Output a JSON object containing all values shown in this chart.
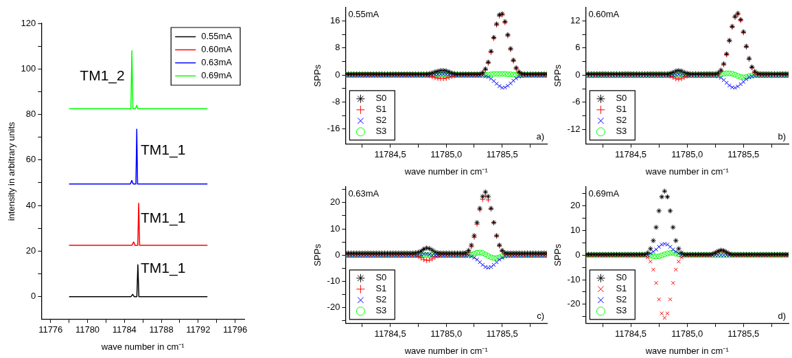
{
  "chart_data": [
    {
      "type": "line",
      "xlabel": "wave number in cm⁻¹",
      "ylabel": "intensity in arbitrary units",
      "xlim": [
        11775,
        11797
      ],
      "xticks": [
        11776,
        {
          "value": 11778,
          "label": null
        },
        11780,
        {
          "value": 11782,
          "label": null
        },
        11784,
        {
          "value": 11786,
          "label": null
        },
        11788,
        {
          "value": 11790,
          "label": null
        },
        11792,
        {
          "value": 11794,
          "label": null
        },
        11796
      ],
      "ylim": [
        -10,
        120
      ],
      "yticks": [
        0,
        {
          "value": 10,
          "label": null
        },
        20,
        {
          "value": 30,
          "label": null
        },
        40,
        {
          "value": 50,
          "label": null
        },
        60,
        {
          "value": 70,
          "label": null
        },
        80,
        {
          "value": 90,
          "label": null
        },
        100,
        {
          "value": 110,
          "label": null
        },
        120
      ],
      "grid": false,
      "legend": "top right",
      "series": [
        {
          "name": "0.55mA",
          "color": "#000000",
          "x": [
            11778,
            11784.7,
            11784.9,
            11785.05,
            11785.35,
            11785.46,
            11785.57,
            11793
          ],
          "values": [
            0,
            0,
            1,
            0,
            0,
            14,
            0,
            0
          ]
        },
        {
          "name": "0.60mA",
          "color": "#ff0000",
          "x": [
            11778,
            11784.8,
            11785.0,
            11785.15,
            11785.45,
            11785.55,
            11785.65,
            11793
          ],
          "values": [
            22.5,
            22.5,
            24,
            22.5,
            22.5,
            41,
            22.5,
            22.5
          ]
        },
        {
          "name": "0.63mA",
          "color": "#0000ff",
          "x": [
            11778,
            11784.65,
            11784.8,
            11784.95,
            11785.25,
            11785.34,
            11785.43,
            11793
          ],
          "values": [
            49.5,
            49.5,
            51,
            49.5,
            49.5,
            73.5,
            49.5,
            49.5
          ]
        },
        {
          "name": "0.69mA",
          "color": "#00ff00",
          "x": [
            11778,
            11784.7,
            11784.81,
            11784.92,
            11785.2,
            11785.34,
            11785.45,
            11793
          ],
          "values": [
            82.5,
            82.5,
            108,
            82.5,
            82.5,
            84,
            82.5,
            82.5
          ]
        }
      ],
      "annotations": [
        "TM1_2",
        "TM1_1",
        "TM1_1",
        "TM1_1"
      ]
    },
    {
      "type": "scatter",
      "xlabel": "wave number in cm⁻¹",
      "ylabel": "SPPs",
      "xlim": [
        11784.1,
        11785.9
      ],
      "xticks": [
        {
          "value": 11784.25,
          "label": null
        },
        {
          "value": 11784.5,
          "label": "11784,5"
        },
        {
          "value": 11784.75,
          "label": null
        },
        {
          "value": 11785,
          "label": "11785,0"
        },
        {
          "value": 11785.25,
          "label": null
        },
        {
          "value": 11785.5,
          "label": "11785,5"
        },
        {
          "value": 11785.75,
          "label": null
        }
      ],
      "ylim": [
        -20.5,
        20
      ],
      "yticks": [
        -16,
        {
          "value": -12,
          "label": null
        },
        -8,
        {
          "value": -4,
          "label": null
        },
        0,
        {
          "value": 4,
          "label": null
        },
        8,
        {
          "value": 12,
          "label": null
        },
        16
      ],
      "grid": false,
      "legend": "bottom left",
      "annotations": [
        "0.55mA",
        "a)"
      ],
      "x": [
        11784.1,
        11784.125,
        11784.15,
        11784.175,
        11784.2,
        11784.225,
        11784.25,
        11784.275,
        11784.3,
        11784.325,
        11784.35,
        11784.375,
        11784.4,
        11784.425,
        11784.45,
        11784.475,
        11784.5,
        11784.525,
        11784.55,
        11784.575,
        11784.6,
        11784.625,
        11784.65,
        11784.675,
        11784.7,
        11784.725,
        11784.75,
        11784.775,
        11784.8,
        11784.825,
        11784.85,
        11784.875,
        11784.9,
        11784.925,
        11784.95,
        11784.975,
        11785,
        11785.025,
        11785.05,
        11785.075,
        11785.1,
        11785.125,
        11785.15,
        11785.175,
        11785.2,
        11785.225,
        11785.25,
        11785.275,
        11785.3,
        11785.325,
        11785.35,
        11785.375,
        11785.4,
        11785.425,
        11785.45,
        11785.475,
        11785.5,
        11785.525,
        11785.55,
        11785.575,
        11785.6,
        11785.625,
        11785.65,
        11785.675,
        11785.7,
        11785.725,
        11785.75,
        11785.775,
        11785.8,
        11785.825,
        11785.85,
        11785.875,
        11785.9
      ],
      "series": [
        {
          "name": "S0",
          "color": "#000000",
          "values": [
            0.3,
            0.3,
            0.3,
            0.3,
            0.3,
            0.3,
            0.3,
            0.3,
            0.3,
            0.3,
            0.3,
            0.3,
            0.3,
            0.3,
            0.3,
            0.3,
            0.3,
            0.3,
            0.3,
            0.3,
            0.3,
            0.3,
            0.3,
            0.3,
            0.3,
            0.3,
            0.3,
            0.3,
            0.3,
            0.3,
            0.4,
            0.6,
            0.9,
            1.1,
            1.3,
            1.3,
            1.2,
            0.9,
            0.6,
            0.4,
            0.3,
            0.3,
            0.3,
            0.3,
            0.3,
            0.3,
            0.3,
            0.3,
            0.3,
            0.7,
            1.8,
            3.8,
            7.0,
            11.1,
            15.1,
            17.8,
            18.1,
            15.8,
            11.9,
            7.8,
            4.4,
            2.1,
            0.9,
            0.4,
            0.3,
            0.3,
            0.3,
            0.3,
            0.3,
            0.3,
            0.3,
            0.3,
            0.3
          ]
        },
        {
          "name": "S1",
          "color": "#ff0000",
          "marker": "plus",
          "values": [
            0,
            0,
            0,
            0,
            0,
            0,
            0,
            0,
            0,
            0,
            0,
            0,
            0,
            0,
            0,
            0,
            0,
            0,
            0,
            0,
            0,
            0,
            0,
            0,
            0,
            0,
            0,
            0,
            0,
            0,
            -0.2,
            -0.5,
            -0.8,
            -1.0,
            -1.1,
            -1.1,
            -1.0,
            -0.7,
            -0.4,
            -0.2,
            0,
            0,
            0,
            0,
            0,
            0,
            0,
            0,
            0,
            0.4,
            1.5,
            3.5,
            6.7,
            10.8,
            14.8,
            17.5,
            17.8,
            15.5,
            11.6,
            7.5,
            4.1,
            1.8,
            0.6,
            0,
            0,
            0,
            0,
            0,
            0,
            0,
            0,
            0,
            0
          ]
        },
        {
          "name": "S2",
          "color": "#0000ff",
          "marker": "cross",
          "values": [
            -0.2,
            -0.2,
            -0.2,
            -0.2,
            -0.2,
            -0.2,
            -0.2,
            -0.2,
            -0.2,
            -0.2,
            -0.2,
            -0.2,
            -0.2,
            -0.2,
            -0.2,
            -0.2,
            -0.2,
            -0.2,
            -0.2,
            -0.2,
            -0.2,
            -0.2,
            -0.2,
            -0.2,
            -0.2,
            -0.2,
            -0.2,
            -0.2,
            -0.2,
            -0.2,
            -0.2,
            -0.1,
            0.1,
            0.2,
            0.3,
            0.3,
            0.2,
            0.1,
            -0.1,
            -0.2,
            -0.2,
            -0.2,
            -0.2,
            -0.2,
            -0.2,
            -0.2,
            -0.2,
            -0.2,
            -0.2,
            -0.2,
            -0.4,
            -0.6,
            -1.1,
            -1.8,
            -2.6,
            -3.3,
            -3.8,
            -3.7,
            -3.2,
            -2.5,
            -1.7,
            -1.0,
            -0.5,
            -0.3,
            -0.2,
            -0.2,
            -0.2,
            -0.2,
            -0.2,
            -0.2,
            -0.2,
            -0.2,
            -0.2
          ]
        },
        {
          "name": "S3",
          "color": "#00ff00",
          "marker": "circle",
          "values": [
            0,
            0,
            0,
            0,
            0,
            0,
            0,
            0,
            0,
            0,
            0,
            0,
            0,
            0,
            0,
            0,
            0,
            0,
            0,
            0,
            0,
            0,
            0,
            0,
            0,
            0,
            0,
            0,
            0,
            0,
            0,
            0,
            0,
            0,
            0,
            0,
            0,
            0,
            0,
            0,
            0,
            0,
            0,
            0,
            0,
            0,
            0,
            0,
            0,
            0,
            0,
            0.1,
            0.2,
            0.3,
            0.3,
            0.3,
            0.3,
            0.3,
            0.2,
            0.2,
            0.1,
            0,
            0,
            0,
            0,
            0,
            0,
            0,
            0,
            0,
            0,
            0,
            0
          ]
        }
      ]
    },
    {
      "type": "scatter",
      "xlabel": "wave number in cm⁻¹",
      "ylabel": "SPPs",
      "xlim": [
        11784.1,
        11785.9
      ],
      "xticks": [
        {
          "value": 11784.25,
          "label": null
        },
        {
          "value": 11784.5,
          "label": "11784,5"
        },
        {
          "value": 11784.75,
          "label": null
        },
        {
          "value": 11785,
          "label": "11785,0"
        },
        {
          "value": 11785.25,
          "label": null
        },
        {
          "value": 11785.5,
          "label": "11785,5"
        },
        {
          "value": 11785.75,
          "label": null
        }
      ],
      "ylim": [
        -15.3,
        15
      ],
      "yticks": [
        -12,
        {
          "value": -9,
          "label": null
        },
        -6,
        {
          "value": -3,
          "label": null
        },
        0,
        {
          "value": 3,
          "label": null
        },
        6,
        {
          "value": 9,
          "label": null
        },
        12
      ],
      "grid": false,
      "legend": "bottom left",
      "annotations": [
        "0.60mA",
        "b)"
      ],
      "x": [
        11784.1,
        11784.125,
        11784.15,
        11784.175,
        11784.2,
        11784.225,
        11784.25,
        11784.275,
        11784.3,
        11784.325,
        11784.35,
        11784.375,
        11784.4,
        11784.425,
        11784.45,
        11784.475,
        11784.5,
        11784.525,
        11784.55,
        11784.575,
        11784.6,
        11784.625,
        11784.65,
        11784.675,
        11784.7,
        11784.725,
        11784.75,
        11784.775,
        11784.8,
        11784.825,
        11784.85,
        11784.875,
        11784.9,
        11784.925,
        11784.95,
        11784.975,
        11785,
        11785.025,
        11785.05,
        11785.075,
        11785.1,
        11785.125,
        11785.15,
        11785.175,
        11785.2,
        11785.225,
        11785.25,
        11785.275,
        11785.3,
        11785.325,
        11785.35,
        11785.375,
        11785.4,
        11785.425,
        11785.45,
        11785.475,
        11785.5,
        11785.525,
        11785.55,
        11785.575,
        11785.6,
        11785.625,
        11785.65,
        11785.675,
        11785.7,
        11785.725,
        11785.75,
        11785.775,
        11785.8,
        11785.825,
        11785.85,
        11785.875,
        11785.9
      ],
      "series": [
        {
          "name": "S0",
          "color": "#000000",
          "values": [
            0.3,
            0.3,
            0.3,
            0.3,
            0.3,
            0.3,
            0.3,
            0.3,
            0.3,
            0.3,
            0.3,
            0.3,
            0.3,
            0.3,
            0.3,
            0.3,
            0.3,
            0.3,
            0.3,
            0.3,
            0.3,
            0.3,
            0.3,
            0.3,
            0.3,
            0.3,
            0.3,
            0.3,
            0.3,
            0.3,
            0.4,
            0.6,
            0.9,
            1.0,
            0.9,
            0.6,
            0.4,
            0.3,
            0.3,
            0.3,
            0.3,
            0.3,
            0.3,
            0.3,
            0.3,
            0.3,
            0.3,
            0.5,
            1.1,
            2.5,
            4.7,
            7.7,
            10.8,
            13.0,
            13.7,
            12.3,
            9.6,
            6.4,
            3.7,
            1.8,
            0.8,
            0.4,
            0.3,
            0.3,
            0.3,
            0.3,
            0.3,
            0.3,
            0.3,
            0.3,
            0.3,
            0.3,
            0.3
          ]
        },
        {
          "name": "S1",
          "color": "#ff0000",
          "marker": "plus",
          "values": [
            0,
            0,
            0,
            0,
            0,
            0,
            0,
            0,
            0,
            0,
            0,
            0,
            0,
            0,
            0,
            0,
            0,
            0,
            0,
            0,
            0,
            0,
            0,
            0,
            0,
            0,
            0,
            0,
            0,
            0,
            -0.2,
            -0.5,
            -0.8,
            -0.9,
            -0.8,
            -0.5,
            -0.2,
            0,
            0,
            0,
            0,
            0,
            0,
            0,
            0,
            0,
            0,
            0.2,
            0.9,
            2.3,
            4.5,
            7.5,
            10.6,
            12.8,
            13.4,
            12.1,
            9.4,
            6.2,
            3.5,
            1.6,
            0.6,
            0.1,
            0,
            0,
            0,
            0,
            0,
            0,
            0,
            0,
            0,
            0,
            0
          ]
        },
        {
          "name": "S2",
          "color": "#0000ff",
          "marker": "cross",
          "values": [
            -0.2,
            -0.2,
            -0.2,
            -0.2,
            -0.2,
            -0.2,
            -0.2,
            -0.2,
            -0.2,
            -0.2,
            -0.2,
            -0.2,
            -0.2,
            -0.2,
            -0.2,
            -0.2,
            -0.2,
            -0.2,
            -0.2,
            -0.2,
            -0.2,
            -0.2,
            -0.2,
            -0.2,
            -0.2,
            -0.2,
            -0.2,
            -0.2,
            -0.2,
            -0.2,
            -0.2,
            -0.1,
            0.1,
            0.2,
            0.1,
            -0.1,
            -0.2,
            -0.2,
            -0.2,
            -0.2,
            -0.2,
            -0.2,
            -0.2,
            -0.2,
            -0.2,
            -0.2,
            -0.2,
            -0.3,
            -0.6,
            -1.1,
            -1.7,
            -2.3,
            -2.7,
            -2.8,
            -2.5,
            -2.0,
            -1.5,
            -0.9,
            -0.5,
            -0.3,
            -0.2,
            -0.2,
            -0.2,
            -0.2,
            -0.2,
            -0.2,
            -0.2,
            -0.2,
            -0.2,
            -0.2,
            -0.2,
            -0.2,
            -0.2
          ]
        },
        {
          "name": "S3",
          "color": "#00ff00",
          "marker": "circle",
          "values": [
            0,
            0,
            0,
            0,
            0,
            0,
            0,
            0,
            0,
            0,
            0,
            0,
            0,
            0,
            0,
            0,
            0,
            0,
            0,
            0,
            0,
            0,
            0,
            0,
            0,
            0,
            0,
            0,
            0,
            0,
            0,
            0,
            0,
            0,
            0,
            0,
            0,
            0,
            0,
            0,
            0,
            0,
            0,
            0,
            0,
            0,
            0,
            0,
            0.2,
            0.3,
            0.4,
            0.4,
            0.3,
            0.1,
            -0.2,
            -0.4,
            -0.5,
            -0.4,
            -0.2,
            -0.1,
            0,
            0,
            0,
            0,
            0,
            0,
            0,
            0,
            0,
            0,
            0,
            0,
            0
          ]
        }
      ]
    },
    {
      "type": "scatter",
      "xlabel": "wave number in cm⁻¹",
      "ylabel": "SPPs",
      "xlim": [
        11784.1,
        11785.9
      ],
      "xticks": [
        {
          "value": 11784.25,
          "label": null
        },
        {
          "value": 11784.5,
          "label": "11784,5"
        },
        {
          "value": 11784.75,
          "label": null
        },
        {
          "value": 11785,
          "label": "11785,0"
        },
        {
          "value": 11785.25,
          "label": null
        },
        {
          "value": 11785.5,
          "label": "11785,5"
        },
        {
          "value": 11785.75,
          "label": null
        }
      ],
      "ylim": [
        -26,
        26
      ],
      "yticks": [
        {
          "value": -25,
          "label": null
        },
        -20,
        {
          "value": -15,
          "label": null
        },
        -10,
        {
          "value": -5,
          "label": null
        },
        0,
        {
          "value": 5,
          "label": null
        },
        10,
        {
          "value": 15,
          "label": null
        },
        20,
        {
          "value": 25,
          "label": null
        }
      ],
      "grid": false,
      "legend": "bottom left",
      "annotations": [
        "0.63mA",
        "c)"
      ],
      "x": [
        11784.1,
        11784.125,
        11784.15,
        11784.175,
        11784.2,
        11784.225,
        11784.25,
        11784.275,
        11784.3,
        11784.325,
        11784.35,
        11784.375,
        11784.4,
        11784.425,
        11784.45,
        11784.475,
        11784.5,
        11784.525,
        11784.55,
        11784.575,
        11784.6,
        11784.625,
        11784.65,
        11784.675,
        11784.7,
        11784.725,
        11784.75,
        11784.775,
        11784.8,
        11784.825,
        11784.85,
        11784.875,
        11784.9,
        11784.925,
        11784.95,
        11784.975,
        11785,
        11785.025,
        11785.05,
        11785.075,
        11785.1,
        11785.125,
        11785.15,
        11785.175,
        11785.2,
        11785.225,
        11785.25,
        11785.275,
        11785.3,
        11785.325,
        11785.35,
        11785.375,
        11785.4,
        11785.425,
        11785.45,
        11785.475,
        11785.5,
        11785.525,
        11785.55,
        11785.575,
        11785.6,
        11785.625,
        11785.65,
        11785.675,
        11785.7,
        11785.725,
        11785.75,
        11785.775,
        11785.8,
        11785.825,
        11785.85,
        11785.875,
        11785.9
      ],
      "series": [
        {
          "name": "S0",
          "color": "#000000",
          "values": [
            0.8,
            0.8,
            0.8,
            0.8,
            0.8,
            0.8,
            0.8,
            0.8,
            0.8,
            0.8,
            0.8,
            0.8,
            0.8,
            0.8,
            0.8,
            0.8,
            0.8,
            0.8,
            0.8,
            0.8,
            0.8,
            0.8,
            0.8,
            0.8,
            0.8,
            0.9,
            1.1,
            1.5,
            2.3,
            2.7,
            2.5,
            1.9,
            1.2,
            0.9,
            0.8,
            0.8,
            0.8,
            0.8,
            0.8,
            0.8,
            0.8,
            0.8,
            0.8,
            0.9,
            1.8,
            3.8,
            7.4,
            12.4,
            17.8,
            22.3,
            24.0,
            22.3,
            17.8,
            12.4,
            7.4,
            3.8,
            1.8,
            0.9,
            0.8,
            0.8,
            0.8,
            0.8,
            0.8,
            0.8,
            0.8,
            0.8,
            0.8,
            0.8,
            0.8,
            0.8,
            0.8,
            0.8,
            0.8
          ]
        },
        {
          "name": "S1",
          "color": "#ff0000",
          "marker": "plus",
          "values": [
            0,
            0,
            0,
            0,
            0,
            0,
            0,
            0,
            0,
            0,
            0,
            0,
            0,
            0,
            0,
            0,
            0,
            0,
            0,
            0,
            0,
            0,
            0,
            0,
            0,
            0,
            -0.4,
            -1.0,
            -1.7,
            -2.0,
            -1.9,
            -1.4,
            -0.8,
            -0.3,
            0,
            0,
            0,
            0,
            0,
            0,
            0,
            0,
            0,
            0,
            1.2,
            3.2,
            6.8,
            11.8,
            17.2,
            21.2,
            22.5,
            21.0,
            17.5,
            12.3,
            7.2,
            3.5,
            1.4,
            0.4,
            0,
            0,
            0,
            0,
            0,
            0,
            0,
            0,
            0,
            0,
            0,
            0,
            0,
            0,
            0
          ]
        },
        {
          "name": "S2",
          "color": "#0000ff",
          "marker": "cross",
          "values": [
            -0.2,
            -0.2,
            -0.2,
            -0.2,
            -0.2,
            -0.2,
            -0.2,
            -0.2,
            -0.2,
            -0.2,
            -0.2,
            -0.2,
            -0.2,
            -0.2,
            -0.2,
            -0.2,
            -0.2,
            -0.2,
            -0.2,
            -0.2,
            -0.2,
            -0.2,
            -0.2,
            -0.2,
            -0.2,
            -0.2,
            -0.2,
            0.2,
            0.5,
            0.5,
            0.3,
            -0.1,
            -0.2,
            -0.2,
            -0.2,
            -0.2,
            -0.2,
            -0.2,
            -0.2,
            -0.2,
            -0.2,
            -0.2,
            -0.2,
            -0.2,
            -0.2,
            -0.5,
            -1.0,
            -1.7,
            -2.7,
            -3.7,
            -4.5,
            -4.8,
            -4.5,
            -3.7,
            -2.7,
            -1.7,
            -1.0,
            -0.5,
            -0.2,
            -0.2,
            -0.2,
            -0.2,
            -0.2,
            -0.2,
            -0.2,
            -0.2,
            -0.2,
            -0.2,
            -0.2,
            -0.2,
            -0.2,
            -0.2,
            -0.2
          ]
        },
        {
          "name": "S3",
          "color": "#00ff00",
          "marker": "circle",
          "values": [
            0,
            0,
            0,
            0,
            0,
            0,
            0,
            0,
            0,
            0,
            0,
            0,
            0,
            0,
            0,
            0,
            0,
            0,
            0,
            0,
            0,
            0,
            0,
            0,
            0,
            0,
            0,
            0,
            0,
            0,
            0,
            0,
            0,
            0,
            0,
            0,
            0,
            0,
            0,
            0,
            0,
            0,
            0,
            0,
            0,
            0.2,
            0.6,
            0.9,
            1.0,
            0.8,
            0.3,
            -0.3,
            -0.8,
            -1.1,
            -1.1,
            -0.8,
            -0.4,
            -0.1,
            0,
            0,
            0,
            0,
            0,
            0,
            0,
            0,
            0,
            0,
            0,
            0,
            0,
            0,
            0
          ]
        }
      ]
    },
    {
      "type": "scatter",
      "xlabel": "wave number in cm⁻¹",
      "ylabel": "SPPs",
      "xlim": [
        11784.1,
        11785.9
      ],
      "xticks": [
        {
          "value": 11784.25,
          "label": null
        },
        {
          "value": 11784.5,
          "label": "11784,5"
        },
        {
          "value": 11784.75,
          "label": null
        },
        {
          "value": 11785,
          "label": "11785,0"
        },
        {
          "value": 11785.25,
          "label": null
        },
        {
          "value": 11785.5,
          "label": "11785,5"
        },
        {
          "value": 11785.75,
          "label": null
        }
      ],
      "ylim": [
        -27.8,
        27.8
      ],
      "yticks": [
        {
          "value": -25,
          "label": null
        },
        -20,
        {
          "value": -15,
          "label": null
        },
        -10,
        {
          "value": -5,
          "label": null
        },
        0,
        {
          "value": 5,
          "label": null
        },
        10,
        {
          "value": 15,
          "label": null
        },
        20,
        {
          "value": 25,
          "label": null
        }
      ],
      "grid": false,
      "legend": "bottom left",
      "annotations": [
        "0.69mA",
        "d)"
      ],
      "x": [
        11784.1,
        11784.125,
        11784.15,
        11784.175,
        11784.2,
        11784.225,
        11784.25,
        11784.275,
        11784.3,
        11784.325,
        11784.35,
        11784.375,
        11784.4,
        11784.425,
        11784.45,
        11784.475,
        11784.5,
        11784.525,
        11784.55,
        11784.575,
        11784.6,
        11784.625,
        11784.65,
        11784.675,
        11784.7,
        11784.725,
        11784.75,
        11784.775,
        11784.8,
        11784.825,
        11784.85,
        11784.875,
        11784.9,
        11784.925,
        11784.95,
        11784.975,
        11785,
        11785.025,
        11785.05,
        11785.075,
        11785.1,
        11785.125,
        11785.15,
        11785.175,
        11785.2,
        11785.225,
        11785.25,
        11785.275,
        11785.3,
        11785.325,
        11785.35,
        11785.375,
        11785.4,
        11785.425,
        11785.45,
        11785.475,
        11785.5,
        11785.525,
        11785.55,
        11785.575,
        11785.6,
        11785.625,
        11785.65,
        11785.675,
        11785.7,
        11785.725,
        11785.75,
        11785.775,
        11785.8,
        11785.825,
        11785.85,
        11785.875,
        11785.9
      ],
      "series": [
        {
          "name": "S0",
          "color": "#000000",
          "values": [
            0.3,
            0.3,
            0.3,
            0.3,
            0.3,
            0.3,
            0.3,
            0.3,
            0.3,
            0.3,
            0.3,
            0.3,
            0.3,
            0.3,
            0.3,
            0.3,
            0.3,
            0.3,
            0.3,
            0.3,
            0.3,
            0.3,
            0.9,
            2.6,
            5.9,
            11.3,
            18.0,
            23.7,
            26.0,
            23.7,
            18.0,
            11.3,
            5.9,
            2.6,
            0.9,
            0.3,
            0.3,
            0.3,
            0.3,
            0.3,
            0.3,
            0.3,
            0.3,
            0.3,
            0.3,
            0.5,
            1.0,
            1.6,
            2.0,
            1.8,
            1.2,
            0.6,
            0.3,
            0.3,
            0.3,
            0.3,
            0.3,
            0.3,
            0.3,
            0.3,
            0.3,
            0.3,
            0.3,
            0.3,
            0.3,
            0.3,
            0.3,
            0.3,
            0.3,
            0.3,
            0.3,
            0.3,
            0.3
          ]
        },
        {
          "name": "S1",
          "color": "#ff0000",
          "marker": "cross",
          "values": [
            0,
            0,
            0,
            0,
            0,
            0,
            0,
            0,
            0,
            0,
            0,
            0,
            0,
            0,
            0,
            0,
            0,
            0,
            0,
            0,
            0,
            0,
            -0.9,
            -2.6,
            -5.9,
            -11.3,
            -18.0,
            -23.7,
            -25.5,
            -23.7,
            -18.0,
            -11.3,
            -5.9,
            -2.6,
            -0.9,
            0,
            0,
            0,
            0,
            0,
            0,
            0,
            0,
            0,
            0,
            0,
            0.9,
            1.5,
            1.8,
            1.6,
            1.0,
            0.4,
            0,
            0,
            0,
            0,
            0,
            0,
            0,
            0,
            0,
            0,
            0,
            0,
            0,
            0,
            0,
            0,
            0,
            0,
            0,
            0,
            0
          ]
        },
        {
          "name": "S2",
          "color": "#0000ff",
          "marker": "cross",
          "values": [
            0,
            0,
            0,
            0,
            0,
            0,
            0,
            0,
            0,
            0,
            0,
            0,
            0,
            0,
            0,
            0,
            0,
            0,
            0,
            0,
            0,
            0,
            0,
            0.7,
            1.4,
            2.3,
            3.4,
            4.3,
            4.6,
            4.3,
            3.4,
            2.3,
            1.4,
            0.7,
            0,
            0,
            0,
            0,
            0,
            0,
            0,
            0,
            0,
            0,
            0,
            0,
            0,
            0,
            0,
            0,
            0,
            0,
            0,
            0,
            0,
            0,
            0,
            0,
            0,
            0,
            0,
            0,
            0,
            0,
            0,
            0,
            0,
            0,
            0,
            0,
            0,
            0,
            0
          ]
        },
        {
          "name": "S3",
          "color": "#00ff00",
          "marker": "circle",
          "values": [
            0,
            0,
            0,
            0,
            0,
            0,
            0,
            0,
            0,
            0,
            0,
            0,
            0,
            0,
            0,
            0,
            0,
            0,
            0,
            0,
            0,
            0,
            0,
            -0.2,
            -0.5,
            -0.6,
            -0.5,
            -0.1,
            0.3,
            0.7,
            0.9,
            0.9,
            0.6,
            0.3,
            0,
            0,
            0,
            0,
            0,
            0,
            0,
            0,
            0,
            0,
            0,
            0,
            0,
            0,
            0,
            0,
            0,
            0,
            0,
            0,
            0,
            0,
            0,
            0,
            0,
            0,
            0,
            0,
            0,
            0,
            0,
            0,
            0,
            0,
            0,
            0,
            0,
            0,
            0
          ]
        }
      ]
    }
  ]
}
